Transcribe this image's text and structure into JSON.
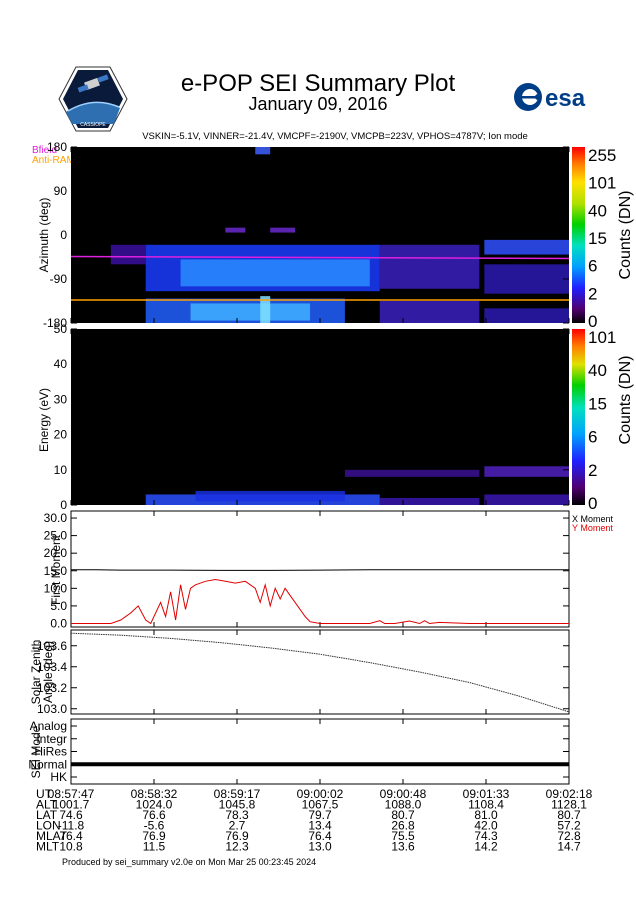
{
  "header": {
    "title": "e-POP SEI Summary Plot",
    "date": "January 09, 2016",
    "params": "VSKIN=-5.1V, VINNER=-21.4V, VMCPF=-2190V, VMCPB=223V, VPHOS=4787V; Ion mode",
    "esa_logo_text": "esa",
    "cassiope_logo_text": "CASSIOPE"
  },
  "legend": {
    "bfield": "Bfield",
    "antiram": "Anti-RAM"
  },
  "colors": {
    "bfield": "#e020e0",
    "antiram": "#ffa000",
    "x_moment": "#000000",
    "y_moment": "#e00000",
    "esa_blue": "#003d87"
  },
  "chart_data": [
    {
      "type": "heatmap",
      "ylabel": "Azimuth (deg)",
      "ylim": [
        -180,
        180
      ],
      "yticks": [
        "180",
        "90",
        "0",
        "-90",
        "-180"
      ],
      "colorbar_label": "Counts (DN)",
      "colorbar_ticks": [
        "255",
        "101",
        "40",
        "15",
        "6",
        "2",
        "0"
      ],
      "bfield_azimuth": [
        -44,
        -48
      ],
      "antiram_azimuth": [
        -133,
        -133
      ]
    },
    {
      "type": "heatmap",
      "ylabel": "Energy (eV)",
      "ylim": [
        0,
        50
      ],
      "yticks": [
        "50",
        "40",
        "30",
        "20",
        "10",
        "0"
      ],
      "colorbar_label": "Counts (DN)",
      "colorbar_ticks": [
        "101",
        "40",
        "15",
        "6",
        "2",
        "0"
      ]
    },
    {
      "type": "line",
      "ylabel": "First Moment",
      "ylim": [
        -1,
        32
      ],
      "yticks": [
        "30.0",
        "25.0",
        "20.0",
        "15.0",
        "10.0",
        "5.0",
        "0.0"
      ],
      "legend": [
        "X Moment",
        "Y Moment"
      ],
      "series": [
        {
          "name": "X Moment",
          "x": [
            0,
            0.05,
            0.1,
            0.2,
            0.3,
            0.4,
            0.5,
            0.6,
            0.7,
            0.8,
            0.9,
            1
          ],
          "values": [
            15.3,
            15.3,
            15.2,
            15.2,
            15.1,
            15.1,
            15.2,
            15.3,
            15.3,
            15.3,
            15.3,
            15.3
          ]
        },
        {
          "name": "Y Moment",
          "x": [
            0,
            0.08,
            0.1,
            0.12,
            0.135,
            0.15,
            0.16,
            0.17,
            0.18,
            0.19,
            0.2,
            0.21,
            0.22,
            0.23,
            0.24,
            0.25,
            0.27,
            0.29,
            0.31,
            0.33,
            0.35,
            0.37,
            0.38,
            0.39,
            0.4,
            0.41,
            0.42,
            0.43,
            0.44,
            0.45,
            0.46,
            0.47,
            0.48,
            0.5,
            0.51,
            0.55,
            0.6,
            0.62,
            0.63,
            0.65,
            0.68,
            0.7,
            0.71,
            0.72,
            0.74,
            0.8,
            0.9,
            1
          ],
          "values": [
            0,
            0,
            1,
            3,
            5,
            1,
            0,
            3,
            6,
            2,
            9,
            1,
            11,
            4,
            10,
            11,
            12,
            12.5,
            12,
            11.5,
            12,
            10,
            6,
            11,
            5,
            10,
            7,
            10,
            8,
            6,
            4,
            2,
            0.5,
            0,
            0,
            0,
            0,
            0.8,
            0,
            0,
            0.7,
            0,
            0.8,
            0,
            0.3,
            0,
            0,
            0
          ]
        }
      ]
    },
    {
      "type": "line",
      "ylabel": "Solar Zenith Angle (deg)",
      "ylim": [
        102.95,
        103.75
      ],
      "yticks": [
        "103.6",
        "103.4",
        "103.2",
        "103.0"
      ],
      "series": [
        {
          "x": [
            0,
            0.1,
            0.2,
            0.3,
            0.4,
            0.5,
            0.6,
            0.7,
            0.8,
            0.9,
            1
          ],
          "values": [
            103.72,
            103.7,
            103.67,
            103.63,
            103.58,
            103.52,
            103.44,
            103.35,
            103.25,
            103.12,
            102.97
          ]
        }
      ]
    },
    {
      "type": "line",
      "ylabel": "SEI Mode",
      "categories": [
        "Analog",
        "Integr",
        "HiRes",
        "Normal",
        "HK"
      ],
      "series": [
        {
          "x": [
            0,
            1
          ],
          "values": [
            "Normal",
            "Normal"
          ]
        }
      ]
    }
  ],
  "ephemeris": {
    "labels": [
      "UT",
      "ALT",
      "LAT",
      "LON",
      "MLAT",
      "MLT"
    ],
    "columns": [
      [
        "08:57:47",
        "1001.7",
        "74.6",
        "-11.8",
        "76.4",
        "10.8"
      ],
      [
        "08:58:32",
        "1024.0",
        "76.6",
        "-5.6",
        "76.9",
        "11.5"
      ],
      [
        "08:59:17",
        "1045.8",
        "78.3",
        "2.7",
        "76.9",
        "12.3"
      ],
      [
        "09:00:02",
        "1067.5",
        "79.7",
        "13.4",
        "76.4",
        "13.0"
      ],
      [
        "09:00:48",
        "1088.0",
        "80.7",
        "26.8",
        "75.5",
        "13.6"
      ],
      [
        "09:01:33",
        "1108.4",
        "81.0",
        "42.0",
        "74.3",
        "14.2"
      ],
      [
        "09:02:18",
        "1128.1",
        "80.7",
        "57.2",
        "72.8",
        "14.7"
      ]
    ]
  },
  "footer": "Produced by sei_summary v2.0e on Mon Mar 25 00:23:45 2024"
}
